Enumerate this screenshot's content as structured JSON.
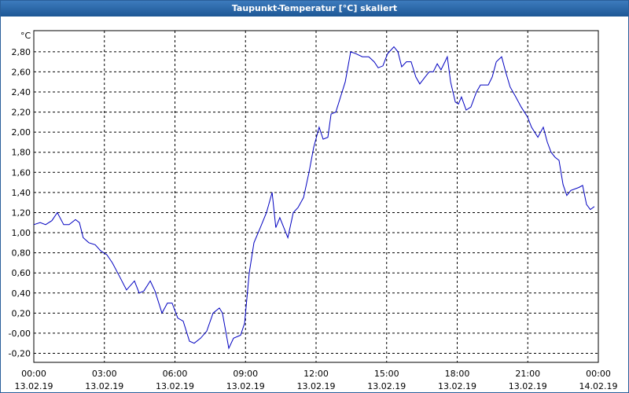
{
  "chart_data": {
    "type": "line",
    "title": "Taupunkt-Temperatur [°C] skaliert",
    "y_label": "°C",
    "xlim": [
      0,
      24
    ],
    "ylim": [
      -0.29,
      3.01
    ],
    "xticks": [
      {
        "value": 0,
        "label": "00:00",
        "date": "13.02.19"
      },
      {
        "value": 3,
        "label": "03:00",
        "date": "13.02.19"
      },
      {
        "value": 6,
        "label": "06:00",
        "date": "13.02.19"
      },
      {
        "value": 9,
        "label": "09:00",
        "date": "13.02.19"
      },
      {
        "value": 12,
        "label": "12:00",
        "date": "13.02.19"
      },
      {
        "value": 15,
        "label": "15:00",
        "date": "13.02.19"
      },
      {
        "value": 18,
        "label": "18:00",
        "date": "13.02.19"
      },
      {
        "value": 21,
        "label": "21:00",
        "date": "13.02.19"
      },
      {
        "value": 24,
        "label": "00:00",
        "date": "14.02.19"
      }
    ],
    "yticks": [
      {
        "value": -0.2,
        "label": "-0,20"
      },
      {
        "value": 0,
        "label": "-0,00"
      },
      {
        "value": 0.2,
        "label": "0,20"
      },
      {
        "value": 0.4,
        "label": "0,40"
      },
      {
        "value": 0.6,
        "label": "0,60"
      },
      {
        "value": 0.8,
        "label": "0,80"
      },
      {
        "value": 1.0,
        "label": "1,00"
      },
      {
        "value": 1.2,
        "label": "1,20"
      },
      {
        "value": 1.4,
        "label": "1,40"
      },
      {
        "value": 1.6,
        "label": "1,60"
      },
      {
        "value": 1.8,
        "label": "1,80"
      },
      {
        "value": 2.0,
        "label": "2,00"
      },
      {
        "value": 2.2,
        "label": "2,20"
      },
      {
        "value": 2.4,
        "label": "2,40"
      },
      {
        "value": 2.6,
        "label": "2,60"
      },
      {
        "value": 2.8,
        "label": "2,80"
      }
    ],
    "grid": true,
    "series": [
      {
        "color": "#0000c0",
        "x": [
          0,
          0.27,
          0.5,
          0.77,
          1.0,
          1.27,
          1.5,
          1.77,
          1.94,
          2.1,
          2.34,
          2.61,
          2.84,
          3.11,
          3.34,
          3.61,
          3.94,
          4.28,
          4.48,
          4.68,
          4.95,
          5.15,
          5.45,
          5.68,
          5.88,
          6.12,
          6.35,
          6.62,
          6.82,
          7.09,
          7.35,
          7.62,
          7.89,
          8.02,
          8.29,
          8.49,
          8.79,
          8.96,
          9.16,
          9.36,
          9.63,
          9.89,
          10.13,
          10.29,
          10.46,
          10.8,
          11.03,
          11.23,
          11.47,
          11.7,
          11.9,
          12.13,
          12.3,
          12.5,
          12.64,
          12.84,
          13.04,
          13.24,
          13.47,
          13.7,
          13.97,
          14.24,
          14.47,
          14.64,
          14.84,
          15.04,
          15.31,
          15.48,
          15.64,
          15.84,
          16.04,
          16.24,
          16.41,
          16.64,
          16.81,
          16.98,
          17.15,
          17.31,
          17.48,
          17.58,
          17.72,
          17.92,
          18.05,
          18.18,
          18.38,
          18.58,
          18.82,
          18.99,
          19.32,
          19.49,
          19.66,
          19.89,
          20.06,
          20.25,
          20.49,
          20.72,
          20.99,
          21.16,
          21.43,
          21.66,
          21.83,
          21.99,
          22.16,
          22.33,
          22.5,
          22.66,
          22.83,
          23.17,
          23.33,
          23.5,
          23.66,
          23.83
        ],
        "values": [
          1.08,
          1.1,
          1.08,
          1.12,
          1.2,
          1.08,
          1.08,
          1.13,
          1.1,
          0.95,
          0.9,
          0.88,
          0.82,
          0.78,
          0.7,
          0.58,
          0.43,
          0.52,
          0.4,
          0.42,
          0.52,
          0.42,
          0.2,
          0.3,
          0.3,
          0.15,
          0.12,
          -0.08,
          -0.1,
          -0.05,
          0.02,
          0.2,
          0.25,
          0.2,
          -0.15,
          -0.05,
          -0.02,
          0.1,
          0.6,
          0.9,
          1.05,
          1.2,
          1.4,
          1.05,
          1.15,
          0.95,
          1.2,
          1.25,
          1.35,
          1.6,
          1.85,
          2.05,
          1.93,
          1.95,
          2.18,
          2.2,
          2.35,
          2.5,
          2.8,
          2.78,
          2.75,
          2.75,
          2.7,
          2.64,
          2.66,
          2.78,
          2.85,
          2.8,
          2.65,
          2.7,
          2.7,
          2.55,
          2.48,
          2.55,
          2.6,
          2.6,
          2.68,
          2.62,
          2.7,
          2.75,
          2.5,
          2.3,
          2.28,
          2.35,
          2.22,
          2.25,
          2.4,
          2.47,
          2.47,
          2.55,
          2.7,
          2.75,
          2.6,
          2.45,
          2.35,
          2.25,
          2.15,
          2.05,
          1.95,
          2.05,
          1.9,
          1.8,
          1.75,
          1.72,
          1.48,
          1.37,
          1.42,
          1.45,
          1.47,
          1.28,
          1.23,
          1.26
        ]
      }
    ]
  }
}
